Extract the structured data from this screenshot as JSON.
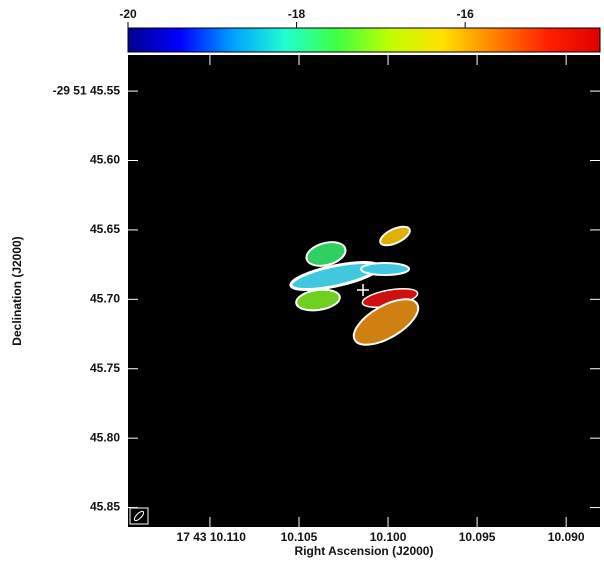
{
  "chart_data": {
    "type": "image",
    "xlabel": "Right Ascension (J2000)",
    "ylabel": "Declination (J2000)",
    "xlim": [
      10.1146,
      10.0881
    ],
    "xticks": [
      {
        "value": 10.11,
        "label": "17 43 10.110"
      },
      {
        "value": 10.105,
        "label": "10.105"
      },
      {
        "value": 10.1,
        "label": "10.100"
      },
      {
        "value": 10.095,
        "label": "10.095"
      },
      {
        "value": 10.09,
        "label": "10.090"
      }
    ],
    "ylim": [
      45.524,
      45.864
    ],
    "yticks": [
      {
        "value": 45.55,
        "label": "-29 51 45.55"
      },
      {
        "value": 45.6,
        "label": "45.60"
      },
      {
        "value": 45.65,
        "label": "45.65"
      },
      {
        "value": 45.7,
        "label": "45.70"
      },
      {
        "value": 45.75,
        "label": "45.75"
      },
      {
        "value": 45.8,
        "label": "45.80"
      },
      {
        "value": 45.85,
        "label": "45.85"
      }
    ],
    "colorbar": {
      "lim": [
        -20,
        -14.4
      ],
      "ticks": [
        -20,
        -18,
        -16
      ],
      "colormap": [
        "#00008f",
        "#0000ff",
        "#00a0ff",
        "#20ffd0",
        "#40ff40",
        "#c0ff00",
        "#ffe000",
        "#ff8000",
        "#ff2000",
        "#e00000"
      ]
    },
    "background": "#000000"
  }
}
